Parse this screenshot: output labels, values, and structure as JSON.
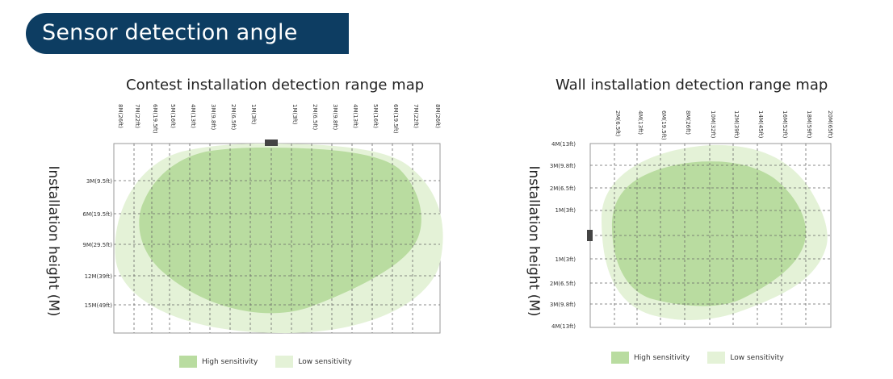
{
  "header": {
    "title": "Sensor detection angle"
  },
  "colors": {
    "banner": "#0d3d62",
    "high": "#b9dca0",
    "low": "#e4f2d7",
    "grid_border": "#999999",
    "mount": "#444444"
  },
  "panels": [
    {
      "title": "Contest installation detection range map",
      "ylabel": "Installation height (M)",
      "top_ticks": [
        "8M(26ft)",
        "7M(22ft)",
        "6M(19.5ft)",
        "5M(16ft)",
        "4M(13ft)",
        "3M(9.8ft)",
        "2M(6.5ft)",
        "1M(3ft)",
        "1M(3ft)",
        "2M(6.5ft)",
        "3M(9.8ft)",
        "4M(13ft)",
        "5M(16ft)",
        "6M(19.5ft)",
        "7M(22ft)",
        "8M(26ft)"
      ],
      "left_ticks": [
        "3M(9.5ft)",
        "6M(19.5ft)",
        "9M(29.5ft)",
        "12M(39ft)",
        "15M(49ft)"
      ]
    },
    {
      "title": "Wall installation detection range map",
      "ylabel": "Installation height (M)",
      "top_ticks": [
        "2M(6.5ft)",
        "4M(13ft)",
        "6M(19.5ft)",
        "8M(26ft)",
        "10M(32ft)",
        "12M(39ft)",
        "14M(45ft)",
        "16M(52ft)",
        "18M(59ft)",
        "20M(65ft)"
      ],
      "left_ticks": [
        "4M(13ft)",
        "3M(9.8ft)",
        "2M(6.5ft)",
        "1M(3ft)",
        "1M(3ft)",
        "2M(6.5ft)",
        "3M(9.8ft)",
        "4M(13ft)"
      ]
    }
  ],
  "legend": {
    "high": "High sensitivity",
    "low": "Low sensitivity"
  }
}
